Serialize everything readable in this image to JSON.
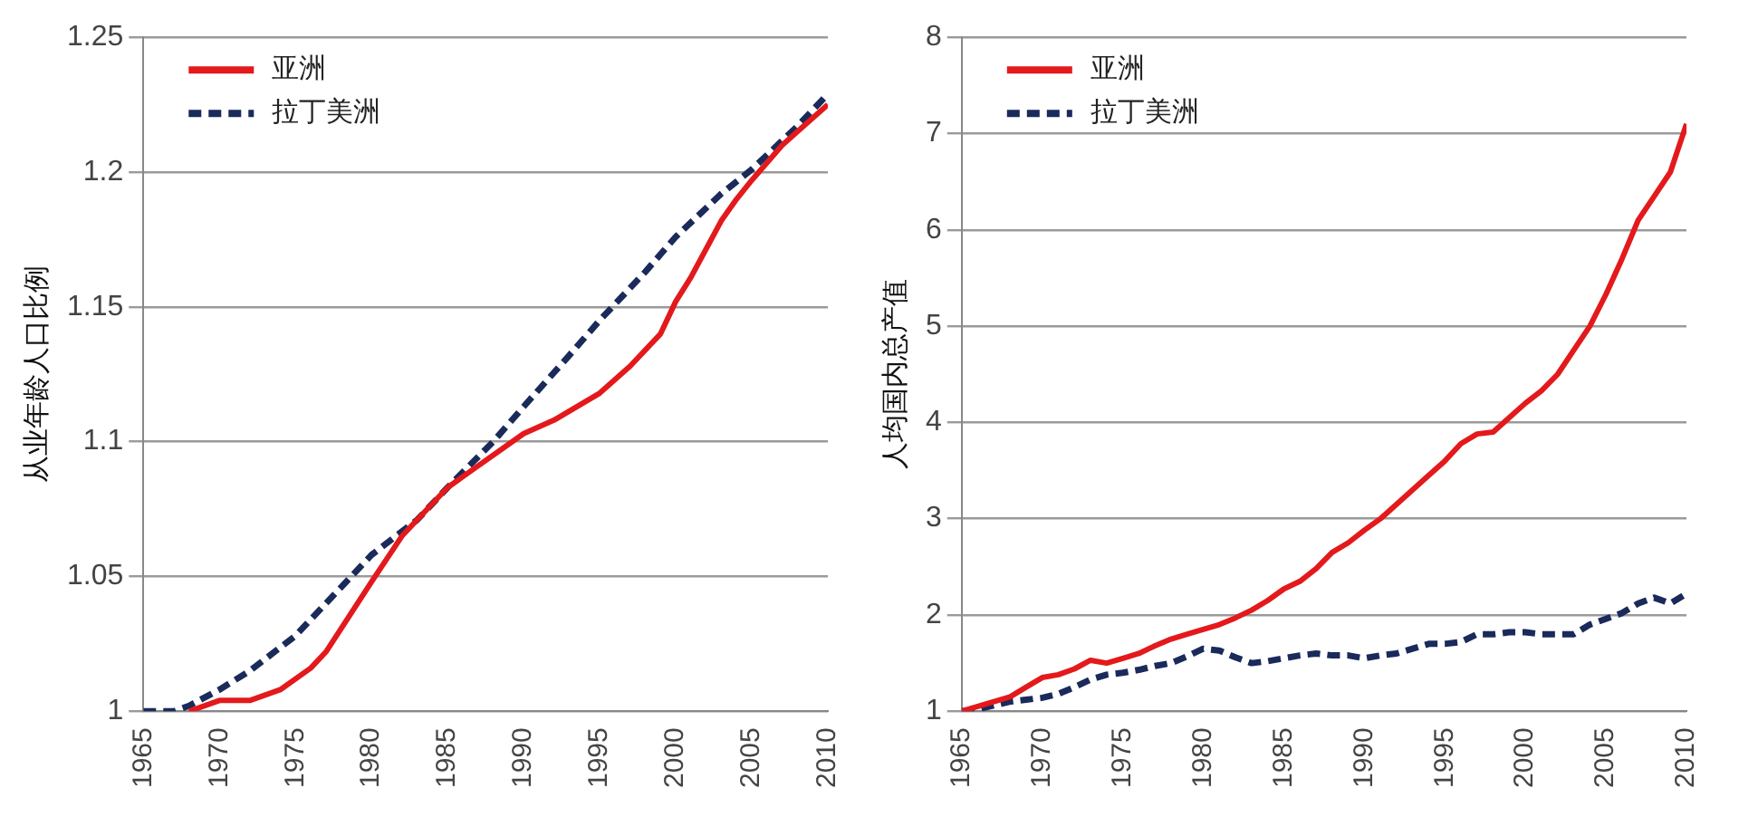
{
  "chart_data": [
    {
      "type": "line",
      "ylabel": "从业年龄人口比例",
      "xlim": [
        1965,
        2010
      ],
      "xticks": [
        1965,
        1970,
        1975,
        1980,
        1985,
        1990,
        1995,
        2000,
        2005,
        2010
      ],
      "ylim": [
        1,
        1.25
      ],
      "yticks": [
        1,
        1.05,
        1.1,
        1.15,
        1.2,
        1.25
      ],
      "grid": "y",
      "legend": "top left",
      "series": [
        {
          "name": "亚洲",
          "color": "#e3191c",
          "line_style": "solid",
          "x": [
            1968,
            1970,
            1972,
            1973,
            1974,
            1976,
            1977,
            1980,
            1982,
            1985,
            1987,
            1990,
            1992,
            1995,
            1997,
            1999,
            2000,
            2001,
            2003,
            2004,
            2005,
            2007,
            2008,
            2010
          ],
          "values": [
            1.0,
            1.004,
            1.004,
            1.006,
            1.008,
            1.016,
            1.022,
            1.048,
            1.065,
            1.083,
            1.091,
            1.103,
            1.108,
            1.118,
            1.128,
            1.14,
            1.152,
            1.161,
            1.182,
            1.19,
            1.197,
            1.21,
            1.215,
            1.225
          ]
        },
        {
          "name": "拉丁美洲",
          "color": "#1a2a5a",
          "line_style": "dashed",
          "x": [
            1965,
            1967,
            1968,
            1970,
            1972,
            1975,
            1977,
            1980,
            1983,
            1985,
            1988,
            1990,
            1993,
            1995,
            1998,
            2000,
            2003,
            2005,
            2008,
            2010
          ],
          "values": [
            1.0,
            1.0,
            1.002,
            1.008,
            1.015,
            1.028,
            1.04,
            1.058,
            1.071,
            1.083,
            1.1,
            1.113,
            1.132,
            1.145,
            1.163,
            1.176,
            1.192,
            1.201,
            1.217,
            1.229
          ]
        }
      ]
    },
    {
      "type": "line",
      "ylabel": "人均国内总产值",
      "xlim": [
        1965,
        2010
      ],
      "xticks": [
        1965,
        1970,
        1975,
        1980,
        1985,
        1990,
        1995,
        2000,
        2005,
        2010
      ],
      "ylim": [
        1,
        8
      ],
      "yticks": [
        1,
        2,
        3,
        4,
        5,
        6,
        7,
        8
      ],
      "grid": "y",
      "legend": "top left",
      "series": [
        {
          "name": "亚洲",
          "color": "#e3191c",
          "line_style": "solid",
          "x": [
            1965,
            1966,
            1967,
            1968,
            1969,
            1970,
            1971,
            1972,
            1973,
            1974,
            1975,
            1976,
            1977,
            1978,
            1979,
            1980,
            1981,
            1982,
            1983,
            1984,
            1985,
            1986,
            1987,
            1988,
            1989,
            1990,
            1991,
            1992,
            1993,
            1994,
            1995,
            1996,
            1997,
            1998,
            1999,
            2000,
            2001,
            2002,
            2003,
            2004,
            2005,
            2006,
            2007,
            2008,
            2009,
            2010
          ],
          "values": [
            1.0,
            1.05,
            1.1,
            1.15,
            1.25,
            1.35,
            1.38,
            1.44,
            1.53,
            1.5,
            1.55,
            1.6,
            1.68,
            1.75,
            1.8,
            1.85,
            1.9,
            1.97,
            2.05,
            2.15,
            2.27,
            2.35,
            2.48,
            2.65,
            2.75,
            2.88,
            3.0,
            3.15,
            3.3,
            3.45,
            3.6,
            3.78,
            3.88,
            3.9,
            4.05,
            4.2,
            4.33,
            4.5,
            4.75,
            5.0,
            5.33,
            5.7,
            6.1,
            6.35,
            6.6,
            7.1
          ]
        },
        {
          "name": "拉丁美洲",
          "color": "#1a2a5a",
          "line_style": "dashed",
          "x": [
            1965,
            1966,
            1967,
            1968,
            1969,
            1970,
            1971,
            1972,
            1973,
            1974,
            1975,
            1976,
            1977,
            1978,
            1979,
            1980,
            1981,
            1982,
            1983,
            1984,
            1985,
            1986,
            1987,
            1988,
            1989,
            1990,
            1991,
            1992,
            1993,
            1994,
            1995,
            1996,
            1997,
            1998,
            1999,
            2000,
            2001,
            2002,
            2003,
            2004,
            2005,
            2006,
            2007,
            2008,
            2009,
            2010
          ],
          "values": [
            1.0,
            1.02,
            1.06,
            1.1,
            1.12,
            1.14,
            1.18,
            1.25,
            1.33,
            1.38,
            1.4,
            1.43,
            1.47,
            1.5,
            1.57,
            1.65,
            1.63,
            1.56,
            1.5,
            1.52,
            1.55,
            1.58,
            1.6,
            1.58,
            1.58,
            1.55,
            1.58,
            1.6,
            1.65,
            1.7,
            1.7,
            1.72,
            1.8,
            1.8,
            1.82,
            1.82,
            1.8,
            1.8,
            1.8,
            1.9,
            1.96,
            2.02,
            2.12,
            2.18,
            2.12,
            2.22
          ]
        }
      ]
    }
  ]
}
